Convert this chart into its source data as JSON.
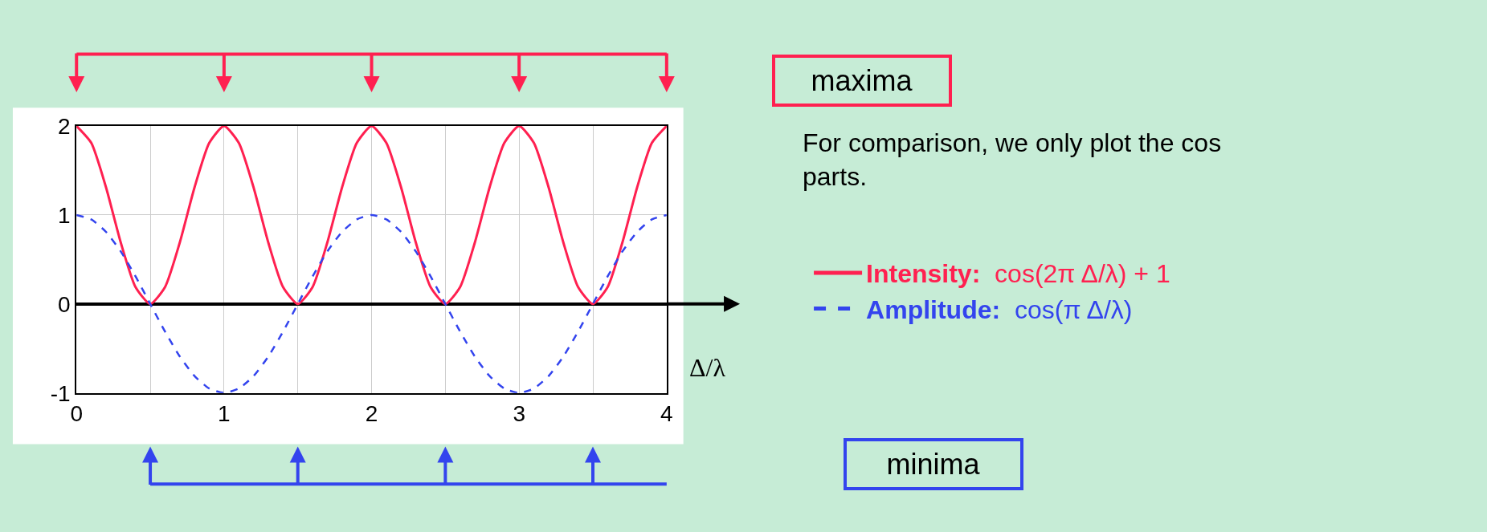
{
  "chart_data": {
    "type": "line",
    "xlabel": "Δ/λ",
    "x": [
      0,
      0.1,
      0.2,
      0.3,
      0.4,
      0.5,
      0.6,
      0.7,
      0.8,
      0.9,
      1,
      1.1,
      1.2,
      1.3,
      1.4,
      1.5,
      1.6,
      1.7,
      1.8,
      1.9,
      2,
      2.1,
      2.2,
      2.3,
      2.4,
      2.5,
      2.6,
      2.7,
      2.8,
      2.9,
      3,
      3.1,
      3.2,
      3.3,
      3.4,
      3.5,
      3.6,
      3.7,
      3.8,
      3.9,
      4
    ],
    "series": [
      {
        "name": "Intensity:  cos(2π Δ/λ) + 1",
        "color": "#ff2050",
        "line_style": "solid",
        "values": [
          2,
          1.81,
          1.31,
          0.69,
          0.19,
          0,
          0.19,
          0.69,
          1.31,
          1.81,
          2,
          1.81,
          1.31,
          0.69,
          0.19,
          0,
          0.19,
          0.69,
          1.31,
          1.81,
          2,
          1.81,
          1.31,
          0.69,
          0.19,
          0,
          0.19,
          0.69,
          1.31,
          1.81,
          2,
          1.81,
          1.31,
          0.69,
          0.19,
          0,
          0.19,
          0.69,
          1.31,
          1.81,
          2
        ]
      },
      {
        "name": "Amplitude:  cos(π Δ/λ)",
        "color": "#3344ee",
        "line_style": "dashed",
        "values": [
          1,
          0.95,
          0.81,
          0.59,
          0.31,
          0,
          -0.31,
          -0.59,
          -0.81,
          -0.95,
          -1,
          -0.95,
          -0.81,
          -0.59,
          -0.31,
          0,
          0.31,
          0.59,
          0.81,
          0.95,
          1,
          0.95,
          0.81,
          0.59,
          0.31,
          0,
          -0.31,
          -0.59,
          -0.81,
          -0.95,
          -1,
          -0.95,
          -0.81,
          -0.59,
          -0.31,
          0,
          0.31,
          0.59,
          0.81,
          0.95,
          1
        ]
      }
    ],
    "xlim": [
      0,
      4
    ],
    "xticks": [
      0,
      {
        "value": 0.5,
        "label": null
      },
      1,
      {
        "value": 1.5,
        "label": null
      },
      2,
      {
        "value": 2.5,
        "label": null
      },
      3,
      {
        "value": 3.5,
        "label": null
      },
      4
    ],
    "ylim": [
      -1,
      2
    ],
    "yticks": [
      -1,
      0,
      1,
      2
    ],
    "grid": true,
    "legend": "right",
    "marker": "none",
    "annotations": [
      "maxima",
      "minima",
      "For comparison, we only plot the cos\nparts."
    ]
  }
}
